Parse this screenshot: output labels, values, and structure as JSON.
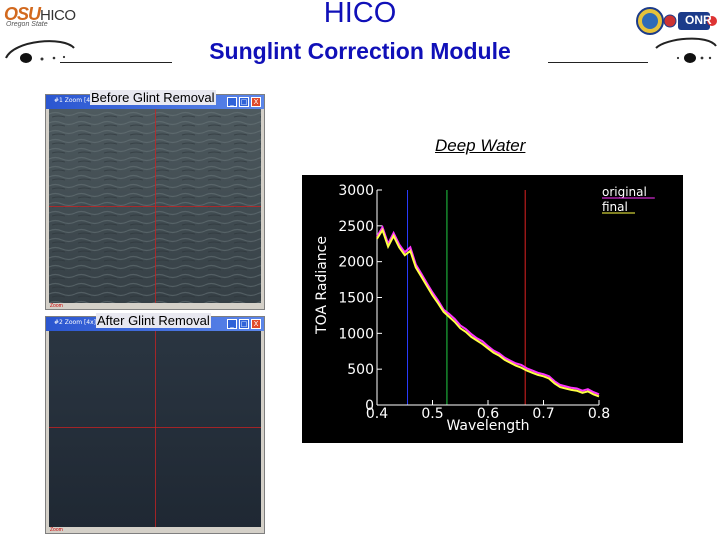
{
  "header": {
    "title": "HICO",
    "subtitle": "Sunglint Correction Module",
    "left_logo_mark": "OSU",
    "left_logo_sub": "Oregon State",
    "left_logo_text": "HICO",
    "right_logo_text": "ONR"
  },
  "windows": [
    {
      "title": "#1 Zoom [4x]",
      "label": "Before Glint Removal",
      "status": "Zoom",
      "buttons": [
        "_",
        "□",
        "X"
      ]
    },
    {
      "title": "#2 Zoom [4x]",
      "label": "After Glint Removal",
      "status": "Zoom",
      "buttons": [
        "_",
        "□",
        "X"
      ]
    }
  ],
  "chart_heading": "Deep Water",
  "colors": {
    "header_text": "#1010b8",
    "chart_bg": "#000000",
    "original_series": "#ff33ff",
    "final_series": "#ffff44",
    "marker_blue": "#2a3cff",
    "marker_green": "#22cc44",
    "marker_red": "#dd2222"
  },
  "chart_data": {
    "type": "line",
    "xlabel": "Wavelength",
    "ylabel": "TOA Radiance",
    "xlim": [
      0.4,
      0.8
    ],
    "ylim": [
      0,
      3000
    ],
    "x_ticks": [
      "0.4",
      "0.5",
      "0.6",
      "0.7",
      "0.8"
    ],
    "y_ticks": [
      "0",
      "500",
      "1000",
      "1500",
      "2000",
      "2500",
      "3000"
    ],
    "grid": false,
    "legend_position": "top-right",
    "vertical_markers": [
      {
        "x": 0.455,
        "color": "blue"
      },
      {
        "x": 0.526,
        "color": "green"
      },
      {
        "x": 0.667,
        "color": "red"
      }
    ],
    "series": [
      {
        "name": "original",
        "color": "#ff33ff",
        "x": [
          0.4,
          0.41,
          0.42,
          0.43,
          0.44,
          0.45,
          0.46,
          0.47,
          0.48,
          0.49,
          0.5,
          0.51,
          0.52,
          0.53,
          0.54,
          0.55,
          0.56,
          0.57,
          0.58,
          0.59,
          0.6,
          0.61,
          0.62,
          0.63,
          0.64,
          0.65,
          0.66,
          0.67,
          0.68,
          0.69,
          0.7,
          0.71,
          0.72,
          0.73,
          0.74,
          0.75,
          0.76,
          0.77,
          0.78,
          0.79,
          0.8
        ],
        "y": [
          2350,
          2480,
          2250,
          2400,
          2240,
          2130,
          2200,
          1960,
          1830,
          1700,
          1570,
          1460,
          1330,
          1270,
          1200,
          1110,
          1060,
          990,
          930,
          890,
          820,
          760,
          720,
          660,
          620,
          580,
          560,
          510,
          480,
          450,
          430,
          400,
          330,
          280,
          260,
          240,
          230,
          200,
          220,
          180,
          150
        ]
      },
      {
        "name": "final",
        "color": "#ffff44",
        "x": [
          0.4,
          0.41,
          0.42,
          0.43,
          0.44,
          0.45,
          0.46,
          0.47,
          0.48,
          0.49,
          0.5,
          0.51,
          0.52,
          0.53,
          0.54,
          0.55,
          0.56,
          0.57,
          0.58,
          0.59,
          0.6,
          0.61,
          0.62,
          0.63,
          0.64,
          0.65,
          0.66,
          0.67,
          0.68,
          0.69,
          0.7,
          0.71,
          0.72,
          0.73,
          0.74,
          0.75,
          0.76,
          0.77,
          0.78,
          0.79,
          0.8
        ],
        "y": [
          2320,
          2440,
          2210,
          2360,
          2200,
          2090,
          2150,
          1920,
          1790,
          1660,
          1530,
          1420,
          1300,
          1230,
          1160,
          1070,
          1020,
          950,
          900,
          850,
          790,
          730,
          690,
          630,
          590,
          550,
          520,
          480,
          450,
          420,
          400,
          370,
          300,
          250,
          230,
          210,
          200,
          170,
          190,
          150,
          120
        ]
      }
    ]
  }
}
